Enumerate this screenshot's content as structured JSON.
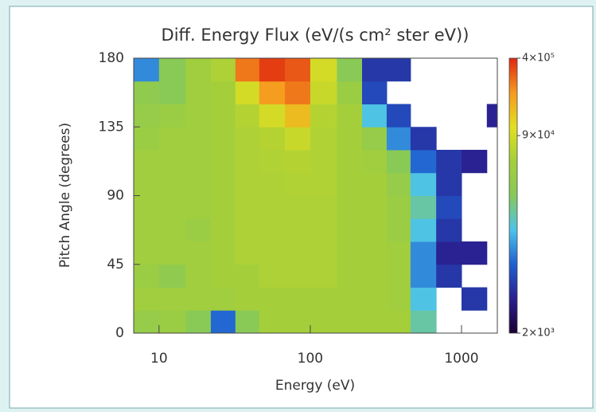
{
  "chart_data": {
    "type": "heatmap",
    "title": "Diff. Energy Flux (eV/(s cm² ster eV))",
    "x_label": "Energy (eV)",
    "y_label": "Pitch Angle (degrees)",
    "x_scale": "log",
    "xlim": [
      6.8,
      1725
    ],
    "xticks": [
      10,
      100,
      1000
    ],
    "ylim": [
      0,
      180
    ],
    "yticks": [
      0,
      45,
      90,
      135,
      180
    ],
    "xbins": [
      6.8,
      10,
      15,
      22,
      32,
      46,
      68,
      100,
      150,
      220,
      320,
      460,
      680,
      1000,
      1470,
      1725
    ],
    "ybins": [
      0,
      15,
      30,
      45,
      60,
      75,
      90,
      105,
      120,
      135,
      150,
      165,
      180
    ],
    "z": [
      [
        40000,
        45000,
        30000,
        8000,
        30000,
        55000,
        55000,
        55000,
        55000,
        55000,
        55000,
        20000,
        null,
        null,
        null
      ],
      [
        50000,
        50000,
        50000,
        50000,
        55000,
        55000,
        55000,
        55000,
        55000,
        55000,
        50000,
        15000,
        null,
        5000,
        null
      ],
      [
        45000,
        35000,
        50000,
        55000,
        55000,
        60000,
        60000,
        60000,
        55000,
        55000,
        50000,
        10000,
        5000,
        null,
        null
      ],
      [
        50000,
        50000,
        50000,
        55000,
        60000,
        60000,
        60000,
        60000,
        55000,
        55000,
        50000,
        10000,
        4000,
        4000,
        null
      ],
      [
        50000,
        50000,
        45000,
        55000,
        60000,
        60000,
        60000,
        60000,
        55000,
        55000,
        45000,
        15000,
        5000,
        null,
        null
      ],
      [
        50000,
        50000,
        50000,
        55000,
        60000,
        60000,
        60000,
        60000,
        55000,
        55000,
        45000,
        20000,
        6000,
        null,
        null
      ],
      [
        50000,
        50000,
        50000,
        55000,
        60000,
        60000,
        62000,
        62000,
        55000,
        55000,
        40000,
        15000,
        5000,
        null,
        null
      ],
      [
        50000,
        50000,
        50000,
        55000,
        60000,
        62000,
        65000,
        62000,
        55000,
        50000,
        30000,
        8000,
        5000,
        4000,
        null
      ],
      [
        45000,
        50000,
        50000,
        55000,
        60000,
        65000,
        80000,
        62000,
        55000,
        40000,
        10000,
        5000,
        null,
        null,
        null
      ],
      [
        40000,
        45000,
        50000,
        55000,
        65000,
        90000,
        150000,
        65000,
        55000,
        15000,
        6000,
        null,
        null,
        null,
        4000
      ],
      [
        35000,
        30000,
        50000,
        55000,
        90000,
        200000,
        250000,
        80000,
        45000,
        6000,
        null,
        null,
        null,
        null,
        null
      ],
      [
        10000,
        30000,
        50000,
        60000,
        250000,
        350000,
        300000,
        90000,
        30000,
        5000,
        5000,
        null,
        null,
        null,
        null
      ]
    ],
    "z_scale": "log",
    "zlim": [
      2000,
      400000
    ],
    "zticks": [
      {
        "value": 2000,
        "label": "2×10³"
      },
      {
        "value": 90000,
        "label": "9×10⁴"
      },
      {
        "value": 400000,
        "label": "4×10⁵"
      }
    ],
    "colorscale": [
      "#1a0033",
      "#2b1f8f",
      "#1f5fd0",
      "#4cc3ea",
      "#86c95a",
      "#a4cf3a",
      "#e3df20",
      "#f59a1e",
      "#e0260f"
    ]
  }
}
